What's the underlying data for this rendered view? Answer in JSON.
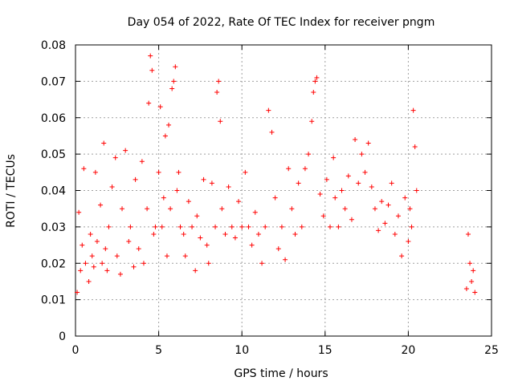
{
  "chart_data": {
    "type": "scatter",
    "title": "Day 054 of 2022, Rate Of TEC Index for receiver pngm",
    "xlabel": "GPS time / hours",
    "ylabel": "ROTI / TECUs",
    "xlim": [
      0,
      25
    ],
    "ylim": [
      0,
      0.08
    ],
    "xticks": [
      "0",
      "5",
      "10",
      "15",
      "20",
      "25"
    ],
    "yticks": [
      "0",
      "0.01",
      "0.02",
      "0.03",
      "0.04",
      "0.05",
      "0.06",
      "0.07",
      "0.08"
    ],
    "grid": true,
    "marker": "+",
    "color": "#ff0000",
    "series": [
      {
        "x": [
          0.1,
          0.2,
          0.3,
          0.4,
          0.5,
          0.6,
          0.8,
          0.9,
          1.0,
          1.1,
          1.2,
          1.3,
          1.5,
          1.6,
          1.7,
          1.8,
          1.9,
          2.0,
          2.2,
          2.4,
          2.5,
          2.7,
          2.8,
          3.0,
          3.2,
          3.3,
          3.5,
          3.6,
          3.8,
          4.0,
          4.1,
          4.3,
          4.4,
          4.5,
          4.6,
          4.7,
          4.8,
          5.0,
          5.1,
          5.2,
          5.3,
          5.4,
          5.5,
          5.6,
          5.7,
          5.8,
          5.9,
          6.0,
          6.1,
          6.2,
          6.3,
          6.5,
          6.6,
          6.8,
          7.0,
          7.2,
          7.3,
          7.5,
          7.7,
          7.9,
          8.0,
          8.2,
          8.4,
          8.5,
          8.6,
          8.7,
          8.8,
          9.0,
          9.2,
          9.4,
          9.6,
          9.8,
          10.0,
          10.2,
          10.4,
          10.6,
          10.8,
          11.0,
          11.2,
          11.4,
          11.6,
          11.8,
          12.0,
          12.2,
          12.4,
          12.6,
          12.8,
          13.0,
          13.2,
          13.4,
          13.6,
          13.8,
          14.0,
          14.2,
          14.3,
          14.4,
          14.5,
          14.7,
          14.9,
          15.1,
          15.3,
          15.5,
          15.6,
          15.8,
          16.0,
          16.2,
          16.4,
          16.6,
          16.8,
          17.0,
          17.2,
          17.4,
          17.6,
          17.8,
          18.0,
          18.2,
          18.4,
          18.6,
          18.8,
          19.0,
          19.2,
          19.4,
          19.6,
          19.8,
          20.0,
          20.1,
          20.2,
          20.3,
          20.4,
          20.5,
          23.5,
          23.6,
          23.7,
          23.8,
          23.9,
          24.0
        ],
        "y": [
          0.012,
          0.034,
          0.018,
          0.025,
          0.046,
          0.02,
          0.015,
          0.028,
          0.022,
          0.019,
          0.045,
          0.026,
          0.036,
          0.02,
          0.053,
          0.024,
          0.018,
          0.03,
          0.041,
          0.049,
          0.022,
          0.017,
          0.035,
          0.051,
          0.026,
          0.03,
          0.019,
          0.043,
          0.024,
          0.048,
          0.02,
          0.035,
          0.064,
          0.077,
          0.073,
          0.028,
          0.03,
          0.045,
          0.063,
          0.03,
          0.038,
          0.055,
          0.022,
          0.058,
          0.035,
          0.068,
          0.07,
          0.074,
          0.04,
          0.045,
          0.03,
          0.028,
          0.022,
          0.037,
          0.03,
          0.018,
          0.033,
          0.027,
          0.043,
          0.025,
          0.02,
          0.042,
          0.03,
          0.067,
          0.07,
          0.059,
          0.035,
          0.028,
          0.041,
          0.03,
          0.027,
          0.037,
          0.03,
          0.045,
          0.03,
          0.025,
          0.034,
          0.028,
          0.02,
          0.03,
          0.062,
          0.056,
          0.038,
          0.024,
          0.03,
          0.021,
          0.046,
          0.035,
          0.028,
          0.042,
          0.03,
          0.046,
          0.05,
          0.059,
          0.067,
          0.07,
          0.071,
          0.039,
          0.033,
          0.043,
          0.03,
          0.049,
          0.038,
          0.03,
          0.04,
          0.035,
          0.044,
          0.032,
          0.054,
          0.042,
          0.05,
          0.045,
          0.053,
          0.041,
          0.035,
          0.029,
          0.037,
          0.031,
          0.036,
          0.042,
          0.028,
          0.033,
          0.022,
          0.038,
          0.026,
          0.035,
          0.03,
          0.062,
          0.052,
          0.04,
          0.013,
          0.028,
          0.02,
          0.015,
          0.018,
          0.012
        ]
      }
    ]
  }
}
